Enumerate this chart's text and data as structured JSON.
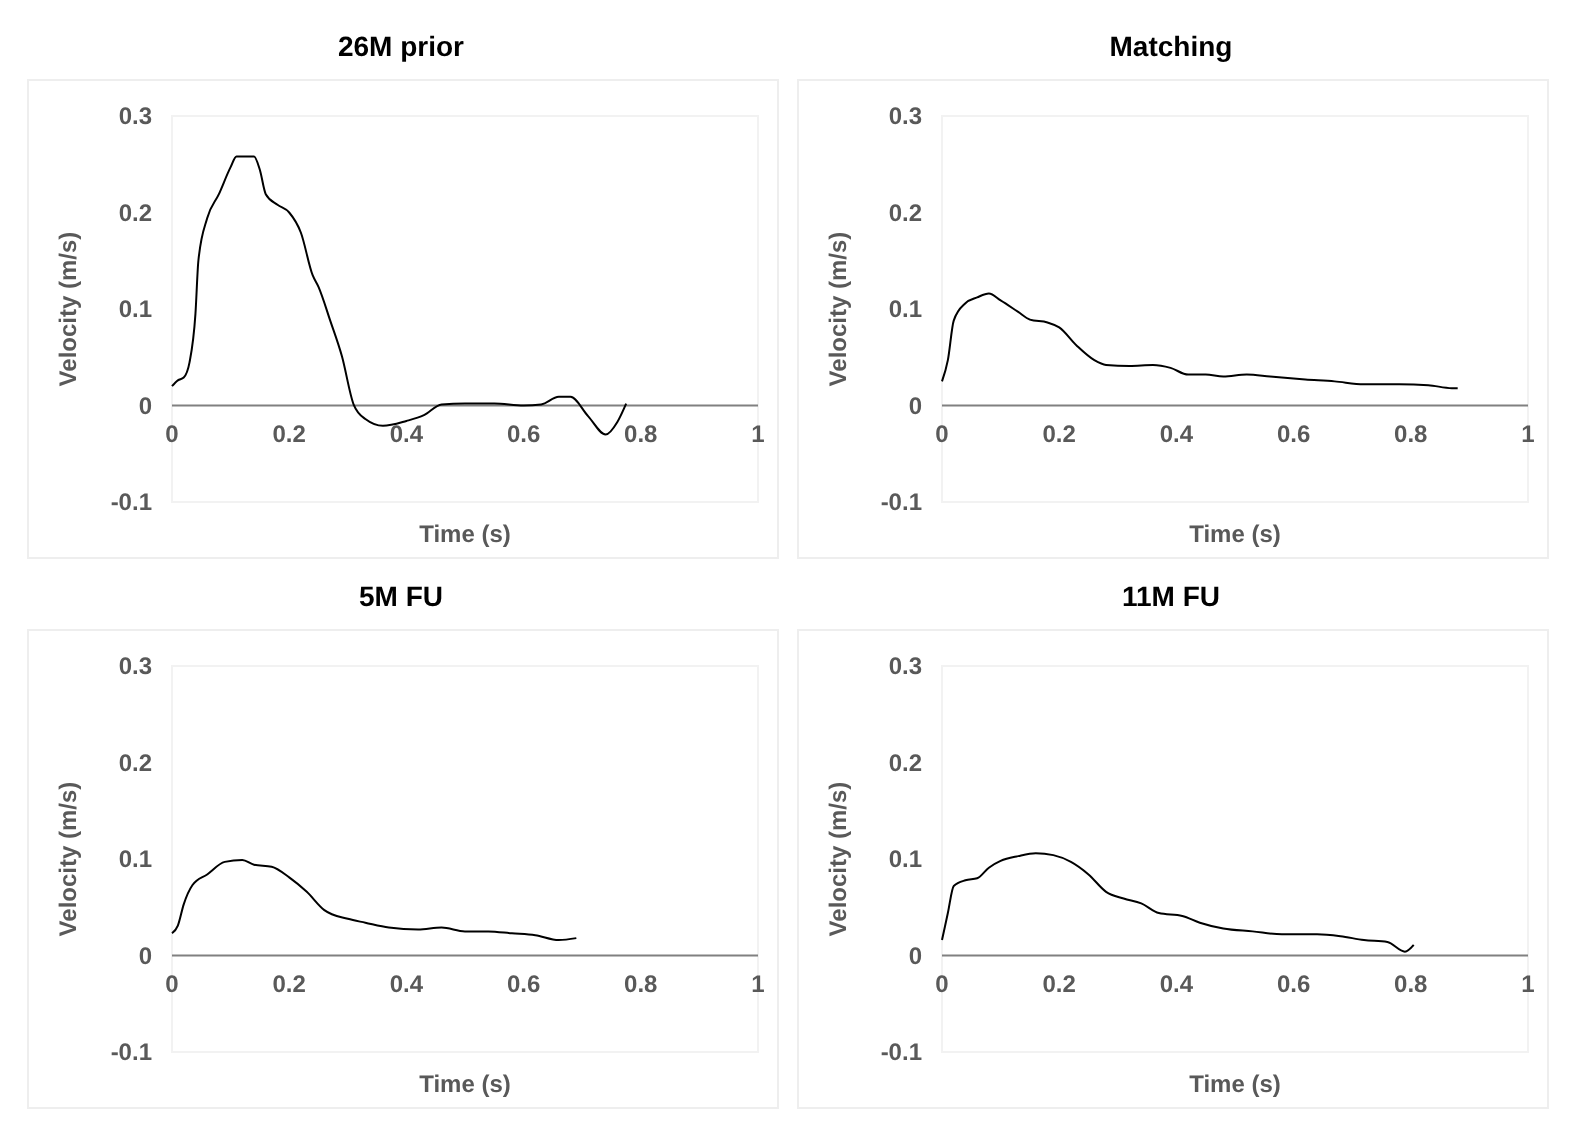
{
  "chart_data": [
    {
      "type": "line",
      "title": "26M prior",
      "xlabel": "Time (s)",
      "ylabel": "Velocity (m/s)",
      "xlim": [
        0,
        1
      ],
      "xticks": [
        0,
        0.2,
        0.4,
        0.6,
        0.8,
        1
      ],
      "ylim": [
        -0.1,
        0.3
      ],
      "yticks": [
        -0.1,
        0,
        0.1,
        0.2,
        0.3
      ],
      "grid": false,
      "series": [
        {
          "color": "#000000",
          "x": [
            0,
            0.01,
            0.02,
            0.03,
            0.04,
            0.045,
            0.06,
            0.08,
            0.1,
            0.11,
            0.14,
            0.15,
            0.16,
            0.18,
            0.2,
            0.22,
            0.24,
            0.25,
            0.27,
            0.29,
            0.31,
            0.33,
            0.36,
            0.4,
            0.43,
            0.46,
            0.5,
            0.55,
            0.6,
            0.63,
            0.66,
            0.68,
            0.71,
            0.74,
            0.76,
            0.775
          ],
          "values": [
            0.02,
            0.026,
            0.029,
            0.045,
            0.095,
            0.15,
            0.194,
            0.219,
            0.247,
            0.258,
            0.258,
            0.244,
            0.219,
            0.208,
            0.2,
            0.179,
            0.135,
            0.123,
            0.088,
            0.051,
            0.001,
            -0.014,
            -0.021,
            -0.016,
            -0.01,
            0.001,
            0.002,
            0.002,
            0,
            0.001,
            0.009,
            0.009,
            -0.011,
            -0.03,
            -0.017,
            0.002
          ]
        }
      ]
    },
    {
      "type": "line",
      "title": "Matching",
      "xlabel": "Time (s)",
      "ylabel": "Velocity (m/s)",
      "xlim": [
        0,
        1
      ],
      "xticks": [
        0,
        0.2,
        0.4,
        0.6,
        0.8,
        1
      ],
      "ylim": [
        -0.1,
        0.3
      ],
      "yticks": [
        -0.1,
        0,
        0.1,
        0.2,
        0.3
      ],
      "grid": false,
      "series": [
        {
          "color": "#000000",
          "x": [
            0,
            0.01,
            0.02,
            0.04,
            0.06,
            0.08,
            0.1,
            0.13,
            0.15,
            0.18,
            0.2,
            0.23,
            0.26,
            0.28,
            0.32,
            0.36,
            0.39,
            0.42,
            0.45,
            0.48,
            0.52,
            0.56,
            0.62,
            0.67,
            0.72,
            0.78,
            0.83,
            0.87,
            0.88
          ],
          "values": [
            0.025,
            0.047,
            0.088,
            0.106,
            0.112,
            0.116,
            0.109,
            0.097,
            0.089,
            0.086,
            0.081,
            0.062,
            0.047,
            0.042,
            0.041,
            0.042,
            0.039,
            0.032,
            0.032,
            0.03,
            0.032,
            0.03,
            0.027,
            0.025,
            0.022,
            0.022,
            0.021,
            0.018,
            0.018
          ]
        }
      ]
    },
    {
      "type": "line",
      "title": "5M FU",
      "xlabel": "Time (s)",
      "ylabel": "Velocity (m/s)",
      "xlim": [
        0,
        1
      ],
      "xticks": [
        0,
        0.2,
        0.4,
        0.6,
        0.8,
        1
      ],
      "ylim": [
        -0.1,
        0.3
      ],
      "yticks": [
        -0.1,
        0,
        0.1,
        0.2,
        0.3
      ],
      "grid": false,
      "series": [
        {
          "color": "#000000",
          "x": [
            0,
            0.01,
            0.02,
            0.035,
            0.06,
            0.09,
            0.12,
            0.14,
            0.17,
            0.2,
            0.23,
            0.26,
            0.3,
            0.33,
            0.37,
            0.42,
            0.46,
            0.5,
            0.54,
            0.58,
            0.62,
            0.66,
            0.69
          ],
          "values": [
            0.023,
            0.031,
            0.053,
            0.073,
            0.084,
            0.097,
            0.099,
            0.094,
            0.092,
            0.081,
            0.066,
            0.047,
            0.038,
            0.034,
            0.029,
            0.027,
            0.029,
            0.025,
            0.025,
            0.023,
            0.021,
            0.016,
            0.018
          ]
        }
      ]
    },
    {
      "type": "line",
      "title": "11M FU",
      "xlabel": "Time (s)",
      "ylabel": "Velocity (m/s)",
      "xlim": [
        0,
        1
      ],
      "xticks": [
        0,
        0.2,
        0.4,
        0.6,
        0.8,
        1
      ],
      "ylim": [
        -0.1,
        0.3
      ],
      "yticks": [
        -0.1,
        0,
        0.1,
        0.2,
        0.3
      ],
      "grid": false,
      "series": [
        {
          "color": "#000000",
          "x": [
            0,
            0.01,
            0.02,
            0.04,
            0.06,
            0.08,
            0.1,
            0.13,
            0.16,
            0.19,
            0.22,
            0.25,
            0.28,
            0.31,
            0.34,
            0.37,
            0.41,
            0.44,
            0.48,
            0.53,
            0.58,
            0.64,
            0.68,
            0.72,
            0.76,
            0.79,
            0.805
          ],
          "values": [
            0.016,
            0.044,
            0.072,
            0.078,
            0.08,
            0.091,
            0.098,
            0.103,
            0.106,
            0.104,
            0.097,
            0.084,
            0.066,
            0.059,
            0.054,
            0.044,
            0.041,
            0.034,
            0.028,
            0.025,
            0.022,
            0.022,
            0.02,
            0.016,
            0.014,
            0.004,
            0.011
          ]
        }
      ]
    }
  ]
}
